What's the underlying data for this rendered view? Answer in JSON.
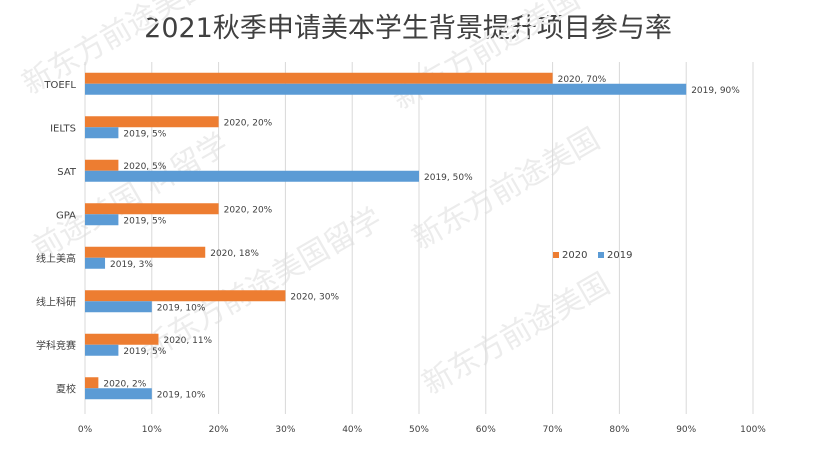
{
  "chart_data": {
    "type": "bar",
    "orientation": "horizontal",
    "title": "2021秋季申请美本学生背景提升项目参与率",
    "categories": [
      "TOEFL",
      "IELTS",
      "SAT",
      "GPA",
      "线上美高",
      "线上科研",
      "学科竞赛",
      "夏校"
    ],
    "series": [
      {
        "name": "2020",
        "color": "#ed7d31",
        "values": [
          70,
          20,
          5,
          20,
          18,
          30,
          11,
          2
        ],
        "labels": [
          "2020, 70%",
          "2020, 20%",
          "2020, 5%",
          "2020, 20%",
          "2020, 18%",
          "2020, 30%",
          "2020, 11%",
          "2020, 2%"
        ]
      },
      {
        "name": "2019",
        "color": "#5b9bd5",
        "values": [
          90,
          5,
          50,
          5,
          3,
          10,
          5,
          10
        ],
        "labels": [
          "2019, 90%",
          "2019, 5%",
          "2019, 50%",
          "2019, 5%",
          "2019, 3%",
          "2019, 10%",
          "2019, 5%",
          "2019, 10%"
        ]
      }
    ],
    "xlim": [
      0,
      100
    ],
    "x_ticks": [
      "0%",
      "10%",
      "20%",
      "30%",
      "40%",
      "50%",
      "60%",
      "70%",
      "80%",
      "90%",
      "100%"
    ],
    "x_tick_values": [
      0,
      10,
      20,
      30,
      40,
      50,
      60,
      70,
      80,
      90,
      100
    ],
    "grid": true,
    "legend_position": "right"
  }
}
